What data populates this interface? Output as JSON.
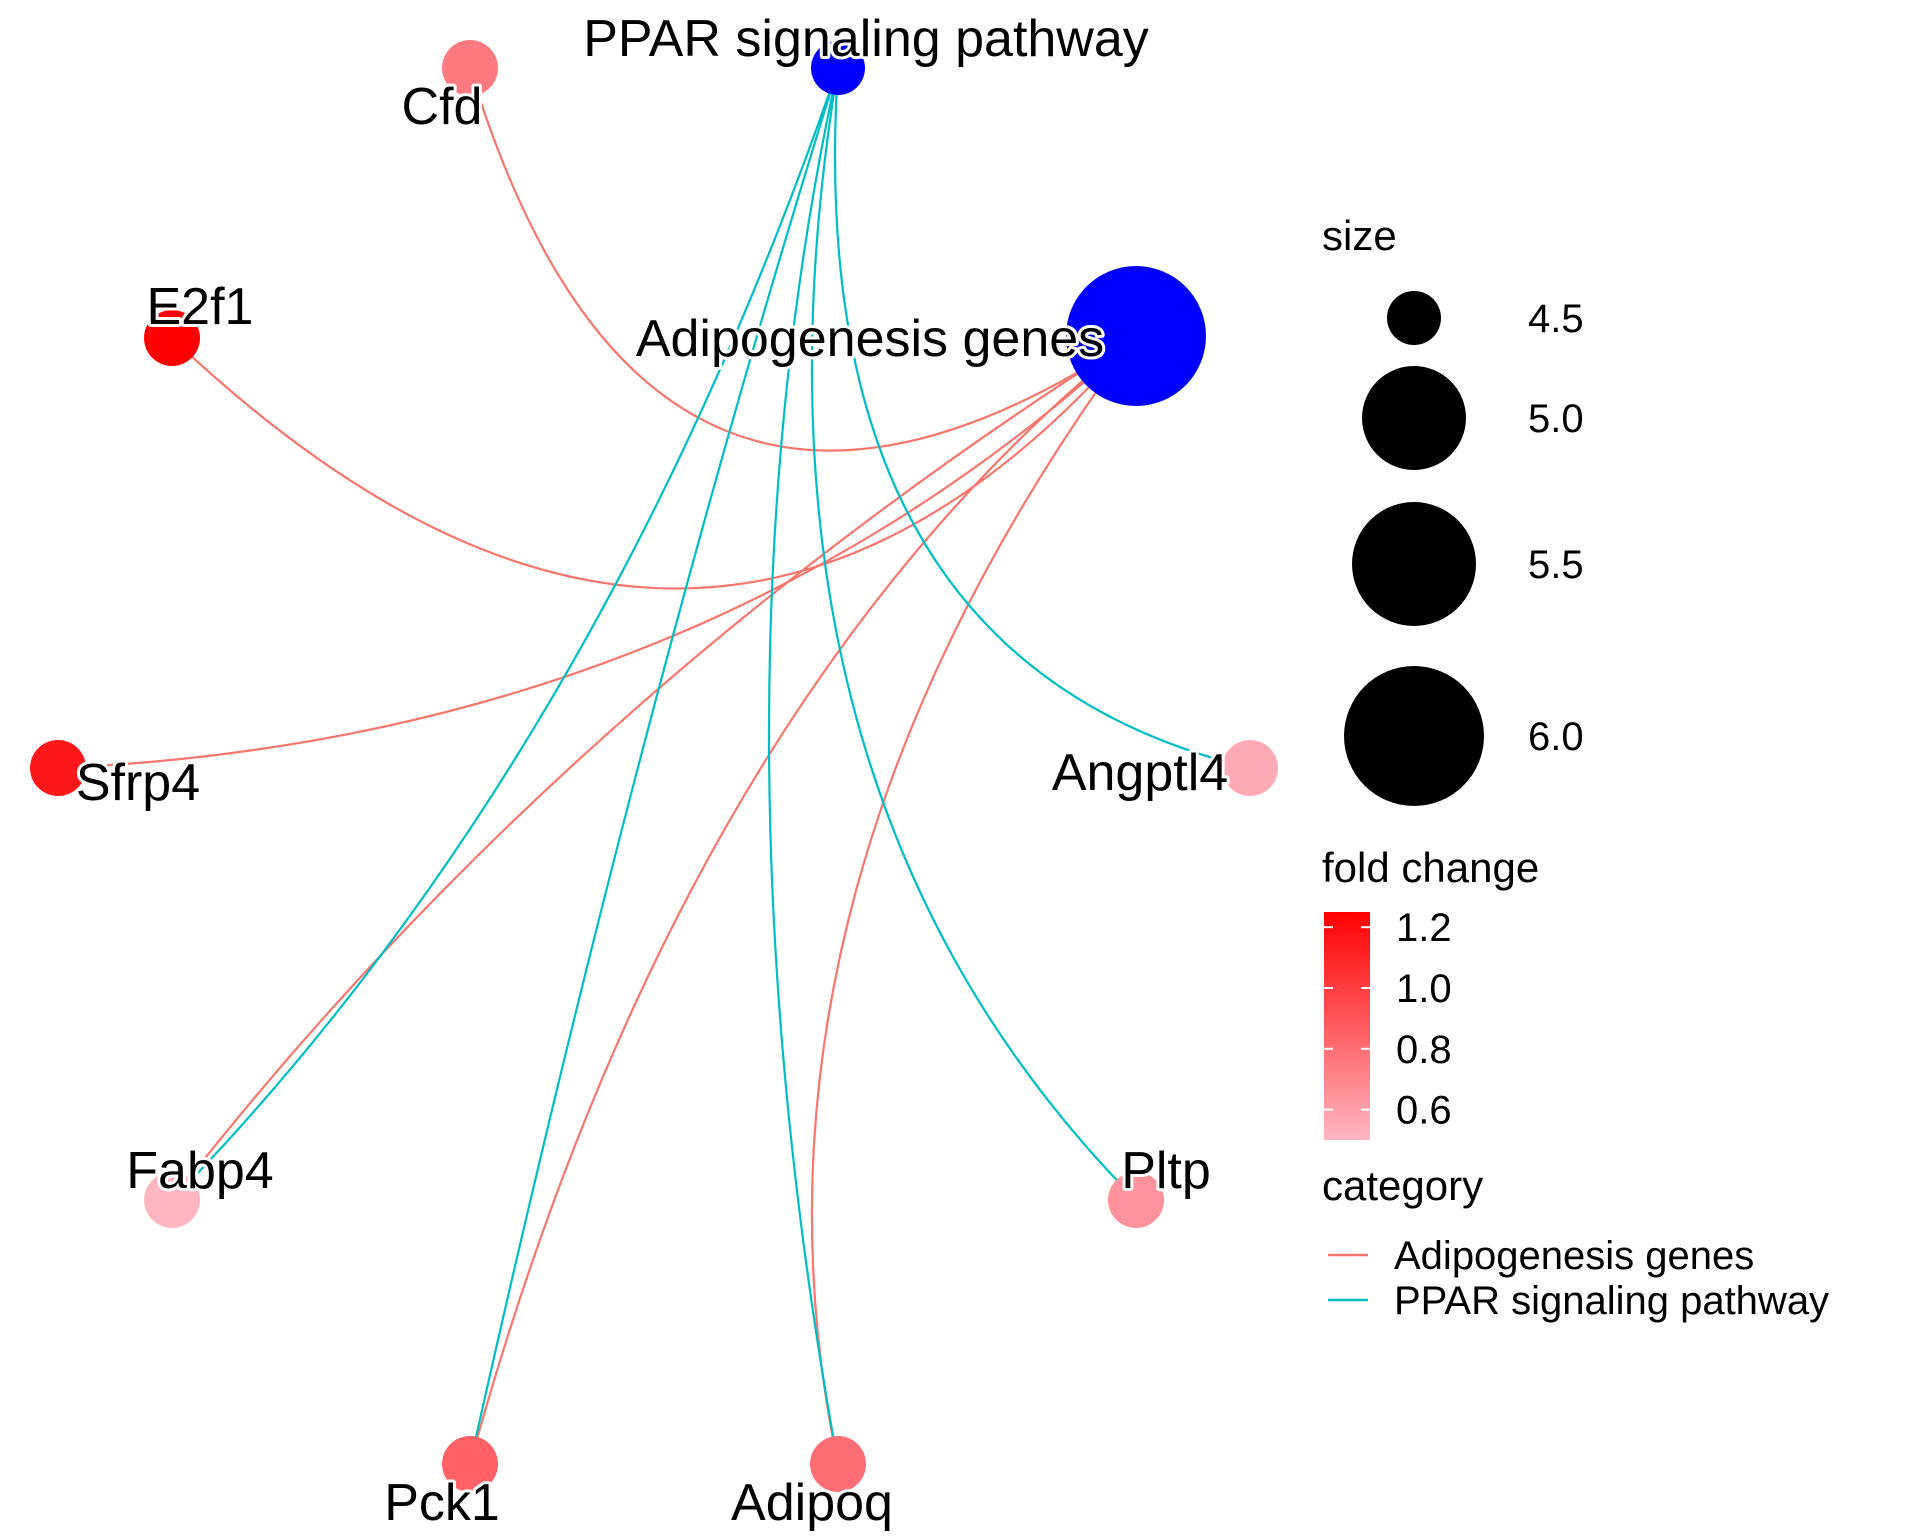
{
  "colors": {
    "adipogenesis_edge": "#F8766D",
    "ppar_edge": "#00BFC4",
    "category_node": "#0000FF",
    "fold_high": "#FF0000",
    "fold_low": "#FFB6C1"
  },
  "nodes": [
    {
      "id": "ppar",
      "label": "PPAR signaling pathway",
      "type": "category",
      "size": 4.5
    },
    {
      "id": "adipo",
      "label": "Adipogenesis genes",
      "type": "category",
      "size": 6.0
    },
    {
      "id": "cfd",
      "label": "Cfd",
      "type": "gene",
      "fold_change": 0.75
    },
    {
      "id": "e2f1",
      "label": "E2f1",
      "type": "gene",
      "fold_change": 1.25
    },
    {
      "id": "sfrp4",
      "label": "Sfrp4",
      "type": "gene",
      "fold_change": 1.15
    },
    {
      "id": "angptl4",
      "label": "Angptl4",
      "type": "gene",
      "fold_change": 0.55
    },
    {
      "id": "fabp4",
      "label": "Fabp4",
      "type": "gene",
      "fold_change": 0.5
    },
    {
      "id": "pltp",
      "label": "Pltp",
      "type": "gene",
      "fold_change": 0.65
    },
    {
      "id": "pck1",
      "label": "Pck1",
      "type": "gene",
      "fold_change": 0.85
    },
    {
      "id": "adipoq",
      "label": "Adipoq",
      "type": "gene",
      "fold_change": 0.8
    }
  ],
  "edges": [
    {
      "from": "adipo",
      "to": "cfd",
      "category": "Adipogenesis genes"
    },
    {
      "from": "adipo",
      "to": "e2f1",
      "category": "Adipogenesis genes"
    },
    {
      "from": "adipo",
      "to": "sfrp4",
      "category": "Adipogenesis genes"
    },
    {
      "from": "adipo",
      "to": "fabp4",
      "category": "Adipogenesis genes"
    },
    {
      "from": "adipo",
      "to": "pck1",
      "category": "Adipogenesis genes"
    },
    {
      "from": "adipo",
      "to": "adipoq",
      "category": "Adipogenesis genes"
    },
    {
      "from": "ppar",
      "to": "angptl4",
      "category": "PPAR signaling pathway"
    },
    {
      "from": "ppar",
      "to": "fabp4",
      "category": "PPAR signaling pathway"
    },
    {
      "from": "ppar",
      "to": "pltp",
      "category": "PPAR signaling pathway"
    },
    {
      "from": "ppar",
      "to": "pck1",
      "category": "PPAR signaling pathway"
    },
    {
      "from": "ppar",
      "to": "adipoq",
      "category": "PPAR signaling pathway"
    }
  ],
  "legend": {
    "size": {
      "title": "size",
      "items": [
        {
          "value": 4.5,
          "label": "4.5"
        },
        {
          "value": 5.0,
          "label": "5.0"
        },
        {
          "value": 5.5,
          "label": "5.5"
        },
        {
          "value": 6.0,
          "label": "6.0"
        }
      ]
    },
    "fold_change": {
      "title": "fold change",
      "range": [
        0.5,
        1.25
      ],
      "ticks": [
        {
          "value": 1.2,
          "label": "1.2"
        },
        {
          "value": 1.0,
          "label": "1.0"
        },
        {
          "value": 0.8,
          "label": "0.8"
        },
        {
          "value": 0.6,
          "label": "0.6"
        }
      ]
    },
    "category": {
      "title": "category",
      "items": [
        {
          "label": "Adipogenesis genes",
          "color": "#F8766D"
        },
        {
          "label": "PPAR signaling pathway",
          "color": "#00BFC4"
        }
      ]
    }
  }
}
